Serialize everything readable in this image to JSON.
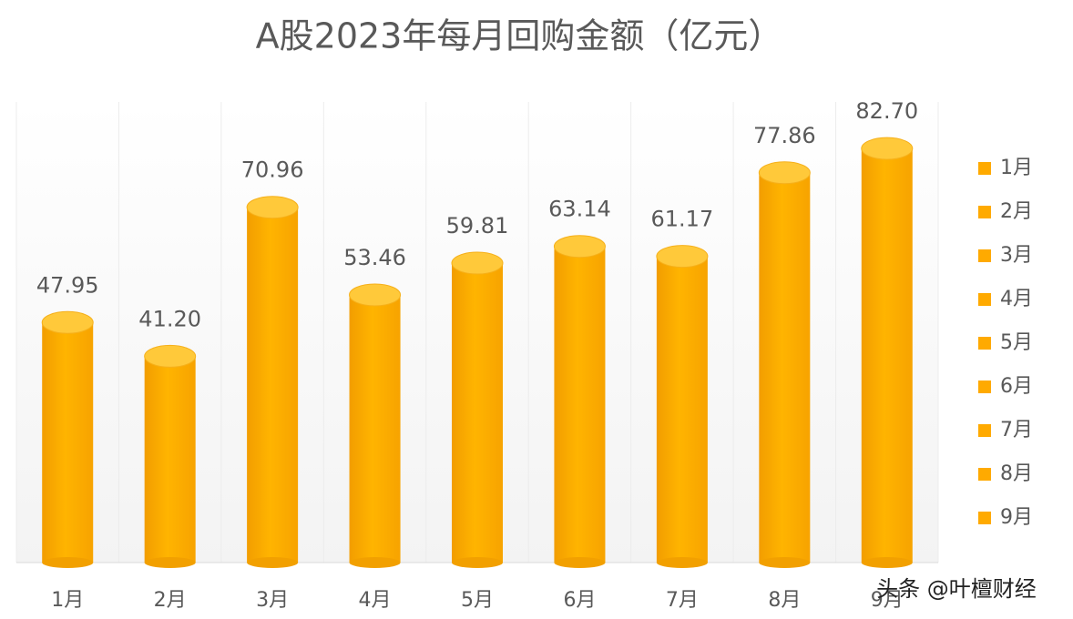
{
  "chart_data": {
    "type": "bar",
    "title": "A股2023年每月回购金额（亿元）",
    "categories": [
      "1月",
      "2月",
      "3月",
      "4月",
      "5月",
      "6月",
      "7月",
      "8月",
      "9月"
    ],
    "values": [
      47.95,
      41.2,
      70.96,
      53.46,
      59.81,
      63.14,
      61.17,
      77.86,
      82.7
    ],
    "value_labels": [
      "47.95",
      "41.20",
      "70.96",
      "53.46",
      "59.81",
      "63.14",
      "61.17",
      "77.86",
      "82.70"
    ],
    "color": "#ffaa00",
    "ylim": [
      0,
      92
    ],
    "legend": "right",
    "watermark": "头条 @叶檀财经"
  }
}
